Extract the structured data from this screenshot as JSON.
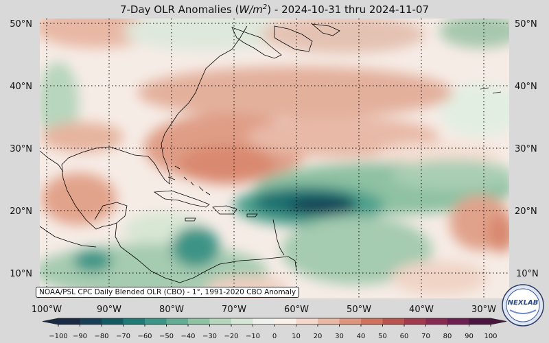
{
  "title": {
    "prefix": "7-Day OLR Anomalies (",
    "unit_base": "W/m",
    "unit_exp": "2",
    "suffix": ") - 2024-10-31 thru 2024-11-07"
  },
  "credit": "NOAA/PSL CPC Daily Blended OLR (CBO) - 1°, 1991-2020 CBO Anomaly",
  "logo_text": "NEXLAB",
  "lat_labels": [
    "50°N",
    "40°N",
    "30°N",
    "20°N",
    "10°N"
  ],
  "lon_labels": [
    "100°W",
    "90°W",
    "80°W",
    "70°W",
    "60°W",
    "50°W",
    "40°W",
    "30°W"
  ],
  "colorbar": {
    "ticks": [
      "−100",
      "−90",
      "−80",
      "−70",
      "−60",
      "−50",
      "−40",
      "−30",
      "−20",
      "−10",
      "0",
      "10",
      "20",
      "30",
      "40",
      "50",
      "60",
      "70",
      "80",
      "90",
      "100"
    ],
    "colors": [
      "#1a2a44",
      "#183f55",
      "#145a63",
      "#1e7a74",
      "#3b9486",
      "#64ab93",
      "#8fc1a3",
      "#b6d5bd",
      "#d6e6d6",
      "#eef1ec",
      "#faf0ea",
      "#f3d8cb",
      "#e9b8a4",
      "#de957f",
      "#cf735f",
      "#b9534d",
      "#a03a4d",
      "#862a52",
      "#6a1f4f",
      "#4a1640"
    ]
  },
  "colors": {
    "background": "#d9d9d9",
    "land_outline": "#000000",
    "gridline": "#000000"
  }
}
